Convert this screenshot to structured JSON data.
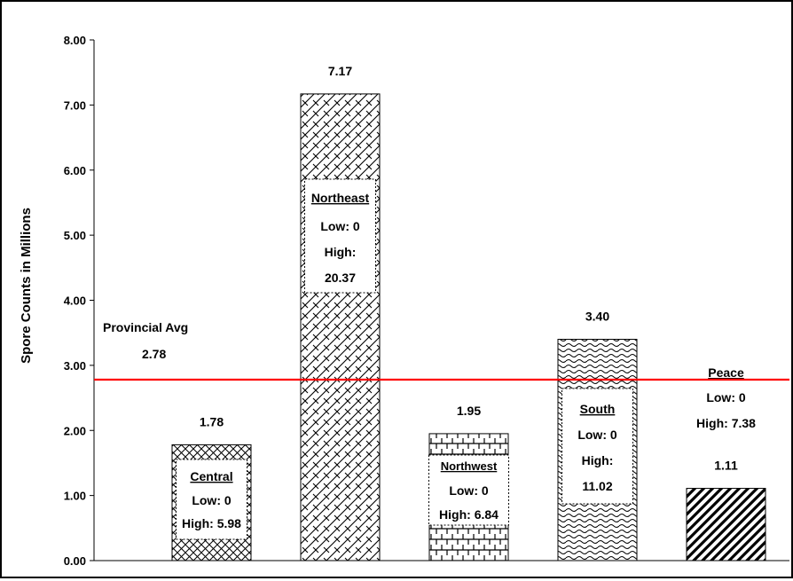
{
  "chart_data": {
    "type": "bar",
    "ylabel": "Spore Counts in Millions",
    "ylim": [
      0,
      8
    ],
    "yticks": [
      "0.00",
      "1.00",
      "2.00",
      "3.00",
      "4.00",
      "5.00",
      "6.00",
      "7.00",
      "8.00"
    ],
    "categories": [
      "Central",
      "Northeast",
      "Northwest",
      "South",
      "Peace"
    ],
    "values": [
      1.78,
      7.17,
      1.95,
      3.4,
      1.11
    ],
    "value_labels": [
      "1.78",
      "7.17",
      "1.95",
      "3.40",
      "1.11"
    ],
    "ranges": [
      {
        "region": "Central",
        "low": "Low: 0",
        "high": "High: 5.98"
      },
      {
        "region": "Northeast",
        "low": "Low: 0",
        "high": "High:",
        "high_value": "20.37"
      },
      {
        "region": "Northwest",
        "low": "Low: 0",
        "high": "High: 6.84"
      },
      {
        "region": "South",
        "low": "Low: 0",
        "high": "High:",
        "high_value": "11.02"
      },
      {
        "region": "Peace",
        "low": "Low: 0",
        "high": "High: 7.38"
      }
    ],
    "patterns": [
      "diagonal-crosshatch",
      "diagonal-brick",
      "grid-brick",
      "wave",
      "wide-diagonal"
    ],
    "reference_line": {
      "label": "Provincial Avg",
      "value_label": "2.78",
      "value": 2.78,
      "color": "#ff0000"
    },
    "grid": false,
    "legend": "none"
  }
}
